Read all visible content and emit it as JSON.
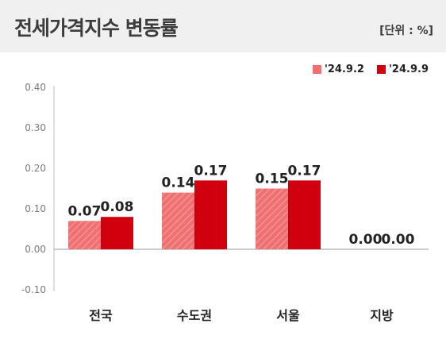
{
  "header": {
    "title": "전세가격지수 변동률",
    "unit": "[단위 : %]"
  },
  "colors": {
    "header_bg": "#f0f0f0",
    "series1": "#f07072",
    "series2": "#d0000f"
  },
  "chart_data": {
    "type": "bar",
    "categories": [
      "전국",
      "수도권",
      "서울",
      "지방"
    ],
    "series": [
      {
        "name": "'24.9.2",
        "values": [
          0.07,
          0.14,
          0.15,
          0.0
        ],
        "labels": [
          "0.07",
          "0.14",
          "0.15",
          "0.00"
        ]
      },
      {
        "name": "'24.9.9",
        "values": [
          0.08,
          0.17,
          0.17,
          0.0
        ],
        "labels": [
          "0.08",
          "0.17",
          "0.17",
          "0.00"
        ]
      }
    ],
    "yticks": [
      "0.40",
      "0.30",
      "0.20",
      "0.10",
      "0.00",
      "-0.10"
    ],
    "ylim": [
      -0.1,
      0.4
    ],
    "legend_position": "top-right",
    "grid": false
  }
}
